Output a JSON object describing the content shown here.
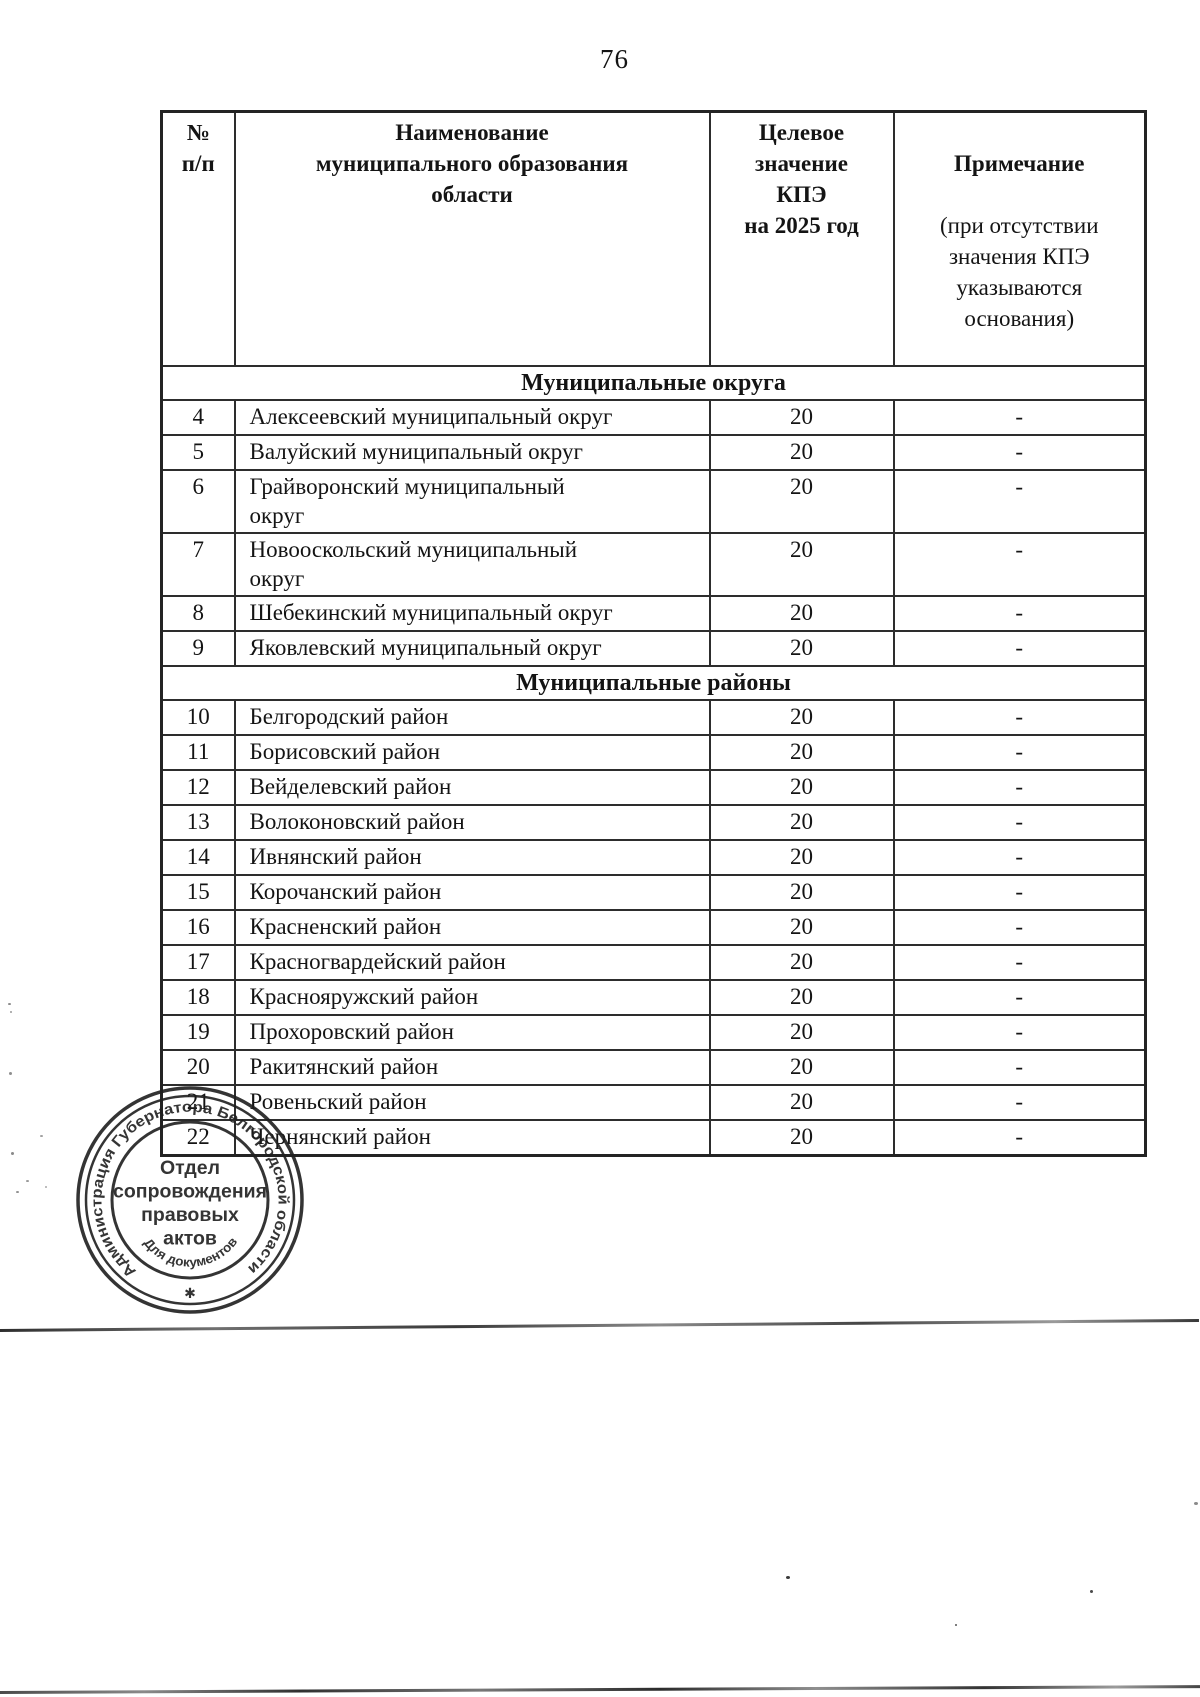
{
  "page": {
    "number": "76"
  },
  "table": {
    "headers": {
      "num": "№\nп/п",
      "name": "Наименование\nмуниципального образования\nобласти",
      "target": "Целевое\nзначение\nКПЭ\nна 2025 год",
      "note_title": "Примечание",
      "note_sub": "(при отсутствии\nзначения КПЭ\nуказываются\nоснования)"
    },
    "sections": [
      {
        "title": "Муниципальные округа",
        "rows": [
          {
            "num": "4",
            "name": "Алексеевский муниципальный округ",
            "value": "20",
            "note": "-"
          },
          {
            "num": "5",
            "name": "Валуйский муниципальный округ",
            "value": "20",
            "note": "-"
          },
          {
            "num": "6",
            "name": "Грайворонский муниципальный\nокруг",
            "value": "20",
            "note": "-"
          },
          {
            "num": "7",
            "name": "Новооскольский муниципальный\nокруг",
            "value": "20",
            "note": "-"
          },
          {
            "num": "8",
            "name": "Шебекинский муниципальный округ",
            "value": "20",
            "note": "-"
          },
          {
            "num": "9",
            "name": "Яковлевский муниципальный округ",
            "value": "20",
            "note": "-"
          }
        ]
      },
      {
        "title": "Муниципальные районы",
        "rows": [
          {
            "num": "10",
            "name": "Белгородский район",
            "value": "20",
            "note": "-"
          },
          {
            "num": "11",
            "name": "Борисовский район",
            "value": "20",
            "note": "-"
          },
          {
            "num": "12",
            "name": "Вейделевский район",
            "value": "20",
            "note": "-"
          },
          {
            "num": "13",
            "name": "Волоконовский район",
            "value": "20",
            "note": "-"
          },
          {
            "num": "14",
            "name": "Ивнянский район",
            "value": "20",
            "note": "-"
          },
          {
            "num": "15",
            "name": "Корочанский район",
            "value": "20",
            "note": "-"
          },
          {
            "num": "16",
            "name": "Красненский район",
            "value": "20",
            "note": "-"
          },
          {
            "num": "17",
            "name": "Красногвардейский район",
            "value": "20",
            "note": "-"
          },
          {
            "num": "18",
            "name": "Краснояружский район",
            "value": "20",
            "note": "-"
          },
          {
            "num": "19",
            "name": "Прохоровский район",
            "value": "20",
            "note": "-"
          },
          {
            "num": "20",
            "name": "Ракитянский район",
            "value": "20",
            "note": "-"
          },
          {
            "num": "21",
            "name": "Ровеньский район",
            "value": "20",
            "note": "-"
          },
          {
            "num": "22",
            "name": "Чернянский район",
            "value": "20",
            "note": "-"
          }
        ]
      }
    ]
  },
  "stamp": {
    "ring_text": "Администрация Губернатора Белгородской области",
    "center_lines": [
      "Отдел",
      "сопровождения",
      "правовых",
      "актов"
    ],
    "bottom_text": "Для документов",
    "star": "✱",
    "ink_color": "#1f1f1f"
  }
}
